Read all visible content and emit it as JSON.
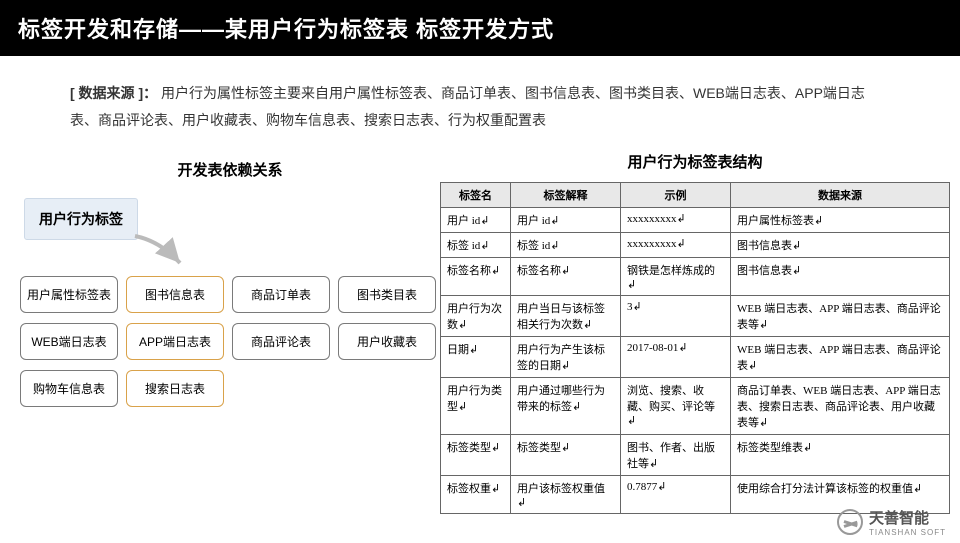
{
  "title": "标签开发和存储——某用户行为标签表 标签开发方式",
  "source": {
    "label": "[ 数据来源 ]：",
    "text": "用户行为属性标签主要来自用户属性标签表、商品订单表、图书信息表、图书类目表、WEB端日志表、APP端日志表、商品评论表、用户收藏表、购物车信息表、搜索日志表、行为权重配置表"
  },
  "diagram": {
    "title": "开发表依赖关系",
    "root": "用户行为标签",
    "nodes": [
      {
        "label": "用户属性标签表",
        "accent": false
      },
      {
        "label": "图书信息表",
        "accent": true
      },
      {
        "label": "商品订单表",
        "accent": false
      },
      {
        "label": "图书类目表",
        "accent": false
      },
      {
        "label": "WEB端日志表",
        "accent": false
      },
      {
        "label": "APP端日志表",
        "accent": true
      },
      {
        "label": "商品评论表",
        "accent": false
      },
      {
        "label": "用户收藏表",
        "accent": false
      },
      {
        "label": "购物车信息表",
        "accent": false
      },
      {
        "label": "搜索日志表",
        "accent": true
      }
    ]
  },
  "table": {
    "title": "用户行为标签表结构",
    "columns": [
      "标签名",
      "标签解释",
      "示例",
      "数据来源"
    ],
    "rows": [
      [
        "用户 id↲",
        "用户 id↲",
        "xxxxxxxxx↲",
        "用户属性标签表↲"
      ],
      [
        "标签 id↲",
        "标签 id↲",
        "xxxxxxxxx↲",
        "图书信息表↲"
      ],
      [
        "标签名称↲",
        "标签名称↲",
        "钢铁是怎样炼成的↲",
        "图书信息表↲"
      ],
      [
        "用户行为次数↲",
        "用户当日与该标签相关行为次数↲",
        "3↲",
        "WEB 端日志表、APP 端日志表、商品评论表等↲"
      ],
      [
        "日期↲",
        "用户行为产生该标签的日期↲",
        "2017-08-01↲",
        "WEB 端日志表、APP 端日志表、商品评论表↲"
      ],
      [
        "用户行为类型↲",
        "用户通过哪些行为带来的标签↲",
        "浏览、搜索、收藏、购买、评论等↲",
        "商品订单表、WEB 端日志表、APP 端日志表、搜索日志表、商品评论表、用户收藏表等↲"
      ],
      [
        "标签类型↲",
        "标签类型↲",
        "图书、作者、出版社等↲",
        "标签类型维表↲"
      ],
      [
        "标签权重↲",
        "用户该标签权重值↲",
        "0.7877↲",
        "使用综合打分法计算该标签的权重值↲"
      ]
    ]
  },
  "footer": {
    "cn": "天善智能",
    "en": "TIANSHAN SOFT"
  }
}
